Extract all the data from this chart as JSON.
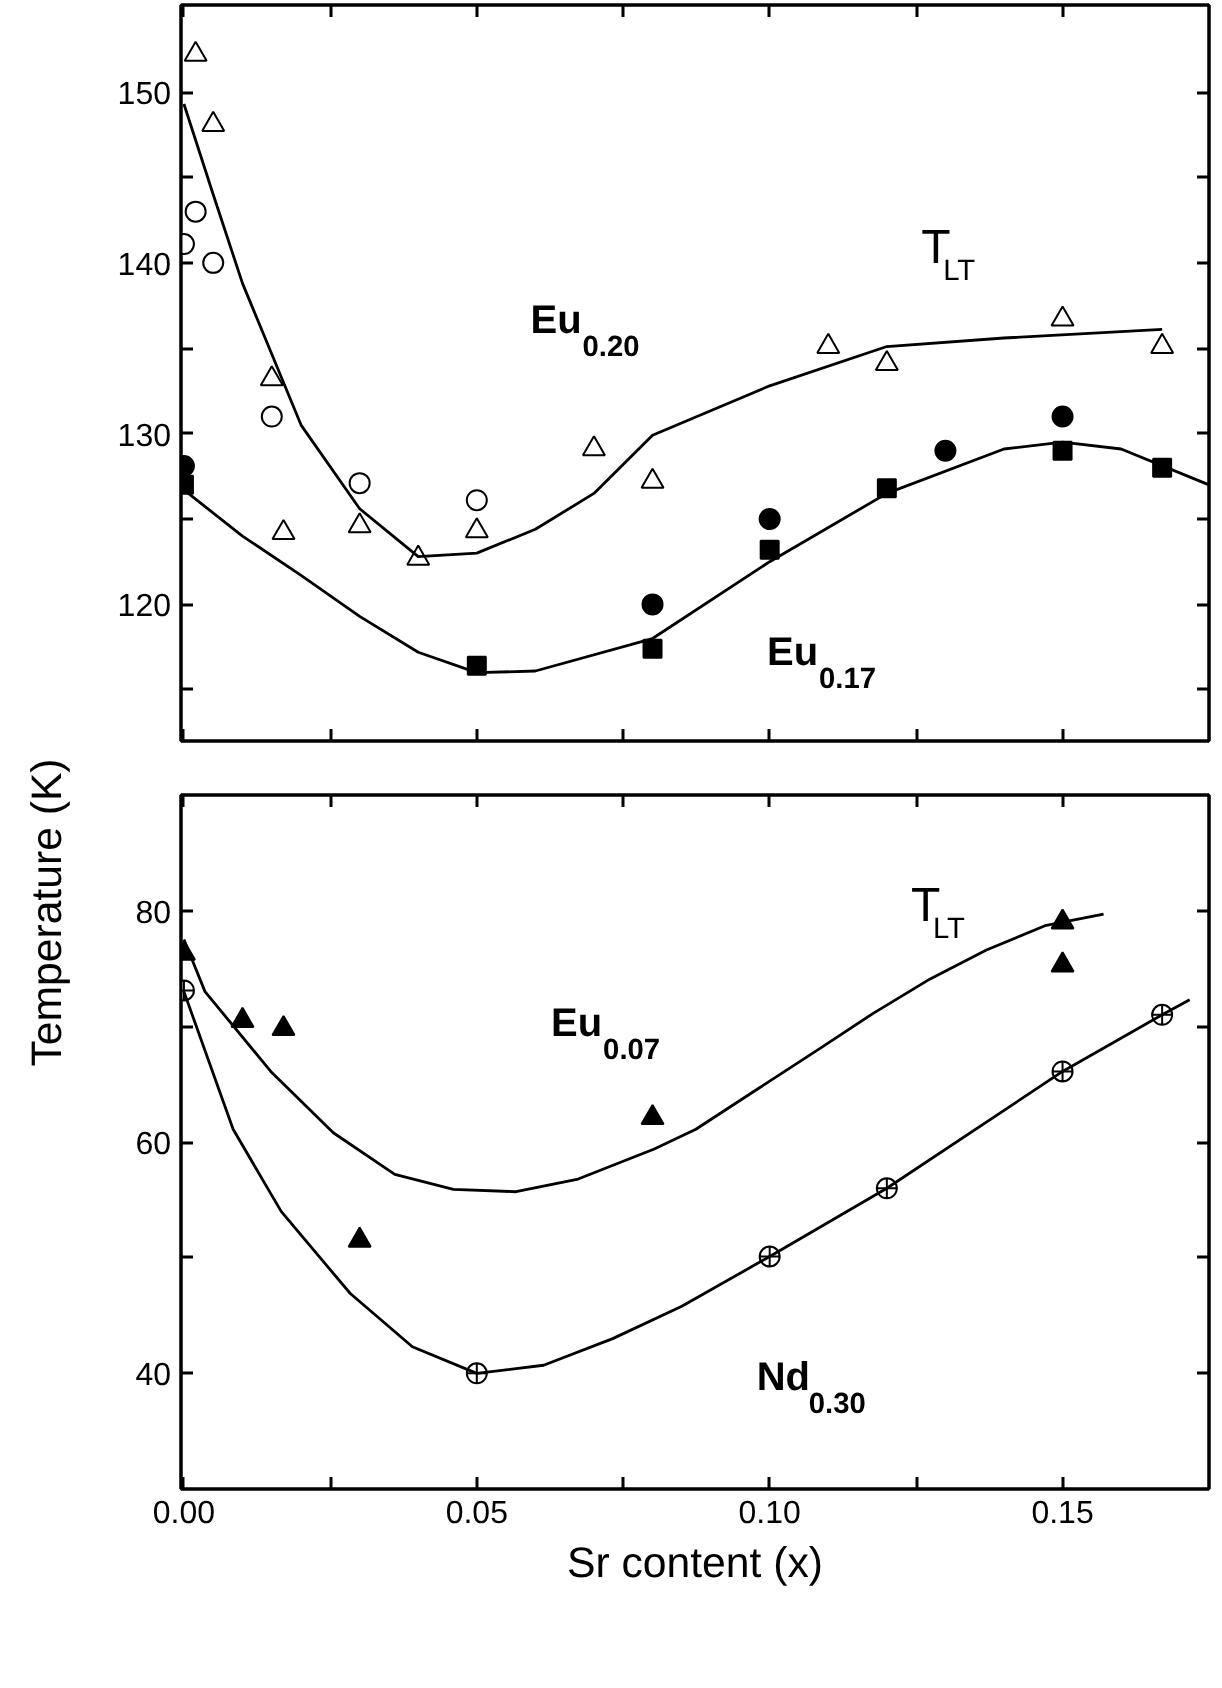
{
  "chart_data": [
    {
      "type": "scatter",
      "ylabel": "Temperature (K)",
      "xlim": [
        -0.0005,
        0.175
      ],
      "ylim": [
        112,
        155.1
      ],
      "xticks": [
        0,
        0.025,
        0.05,
        0.075,
        0.1,
        0.125,
        0.15
      ],
      "yticks": [
        {
          "value": 115,
          "label": null
        },
        120,
        {
          "value": 125,
          "label": null
        },
        130,
        {
          "value": 135,
          "label": null
        },
        140,
        {
          "value": 145,
          "label": null
        },
        150
      ],
      "tick_labels": "y",
      "grid": false,
      "series": [
        {
          "marker": "triangle",
          "color": "#ffffff",
          "x": [
            0.002,
            0.005,
            0.015,
            0.017,
            0.03,
            0.04,
            0.05,
            0.07,
            0.08,
            0.11,
            0.12,
            0.15,
            0.167
          ],
          "values": [
            152.2,
            148.1,
            133.2,
            124.2,
            124.6,
            122.7,
            124.3,
            129.1,
            127.2,
            135.1,
            134.1,
            136.7,
            135.1
          ]
        },
        {
          "marker": "circle",
          "color": "#ffffff",
          "x": [
            0.0,
            0.002,
            0.005,
            0.015,
            0.03,
            0.05
          ],
          "values": [
            141.1,
            143.0,
            140.0,
            131.0,
            127.1,
            126.1
          ]
        },
        {
          "marker": "circle",
          "color": "#000000",
          "x": [
            0.0,
            0.08,
            0.1,
            0.13,
            0.15
          ],
          "values": [
            128.1,
            120.0,
            125.0,
            129.0,
            131.0
          ]
        },
        {
          "marker": "square",
          "color": "#000000",
          "x": [
            0.0,
            0.05,
            0.08,
            0.1,
            0.12,
            0.15,
            0.167
          ],
          "values": [
            127.0,
            116.4,
            117.4,
            123.2,
            126.8,
            129.0,
            128.0
          ]
        },
        {
          "type": "line",
          "marker": "none",
          "color": "#000000",
          "x": [
            0.0,
            0.005,
            0.01,
            0.02,
            0.03,
            0.04,
            0.05,
            0.06,
            0.07,
            0.08,
            0.1,
            0.12,
            0.14,
            0.167
          ],
          "values": [
            149.3,
            144.0,
            138.8,
            130.5,
            125.6,
            122.8,
            123.0,
            124.4,
            126.5,
            129.9,
            132.8,
            135.1,
            135.6,
            136.1
          ]
        },
        {
          "type": "line",
          "marker": "none",
          "color": "#000000",
          "x": [
            0.0,
            0.01,
            0.02,
            0.03,
            0.04,
            0.05,
            0.06,
            0.08,
            0.1,
            0.12,
            0.14,
            0.15,
            0.16,
            0.175
          ],
          "values": [
            126.7,
            124.0,
            121.7,
            119.3,
            117.2,
            116.0,
            116.1,
            118.0,
            122.5,
            126.5,
            129.1,
            129.5,
            129.1,
            127.0
          ]
        }
      ],
      "annotations": [
        "Eu$_{0.20}$",
        "T$_{LT}$",
        "Eu$_{0.17}$"
      ]
    },
    {
      "type": "scatter",
      "xlabel": "Sr content (x)",
      "xlim": [
        -0.0005,
        0.175
      ],
      "ylim": [
        30,
        90
      ],
      "xticks": [
        {
          "value": 0,
          "label": "0.00"
        },
        {
          "value": 0.025,
          "label": null
        },
        {
          "value": 0.05,
          "label": "0.05"
        },
        {
          "value": 0.075,
          "label": null
        },
        {
          "value": 0.1,
          "label": "0.10"
        },
        {
          "value": 0.125,
          "label": null
        },
        {
          "value": 0.15,
          "label": "0.15"
        }
      ],
      "yticks": [
        40,
        {
          "value": 50,
          "label": null
        },
        60,
        {
          "value": 70,
          "label": null
        },
        80
      ],
      "grid": false,
      "series": [
        {
          "marker": "triangle",
          "color": "#000000",
          "x": [
            0.0,
            0.01,
            0.017,
            0.03,
            0.08,
            0.15,
            0.15
          ],
          "values": [
            76.3,
            70.5,
            69.8,
            51.5,
            62.1,
            79.0,
            75.3
          ]
        },
        {
          "marker": "circle_cross",
          "color": "#ffffff",
          "x": [
            0.0,
            0.05,
            0.1,
            0.12,
            0.15,
            0.167
          ],
          "values": [
            73.1,
            40.0,
            50.1,
            56.0,
            66.1,
            71.0
          ]
        },
        {
          "type": "line",
          "marker": "none",
          "color": "#000000",
          "x": [
            0.0,
            0.0036,
            0.015,
            0.0255,
            0.036,
            0.046,
            0.0567,
            0.0673,
            0.0803,
            0.0874,
            0.098,
            0.1086,
            0.1176,
            0.1274,
            0.137,
            0.147,
            0.157
          ],
          "values": [
            77.5,
            73.0,
            66.0,
            60.8,
            57.2,
            55.9,
            55.7,
            56.8,
            59.4,
            61.1,
            64.6,
            68.1,
            71.1,
            74.1,
            76.6,
            78.7,
            79.7
          ]
        },
        {
          "type": "line",
          "marker": "none",
          "color": "#000000",
          "x": [
            0.0,
            0.0084,
            0.0166,
            0.0284,
            0.039,
            0.05,
            0.0614,
            0.0732,
            0.085,
            0.1,
            0.12,
            0.15,
            0.167,
            0.1717
          ],
          "values": [
            73.0,
            61.1,
            54.0,
            46.9,
            42.3,
            40.0,
            40.7,
            43.0,
            45.8,
            50.1,
            56.0,
            66.1,
            71.0,
            72.3
          ]
        }
      ],
      "annotations": [
        "T$_{LT}$",
        "Eu$_{0.07}$",
        "Nd$_{0.30}$"
      ]
    }
  ]
}
